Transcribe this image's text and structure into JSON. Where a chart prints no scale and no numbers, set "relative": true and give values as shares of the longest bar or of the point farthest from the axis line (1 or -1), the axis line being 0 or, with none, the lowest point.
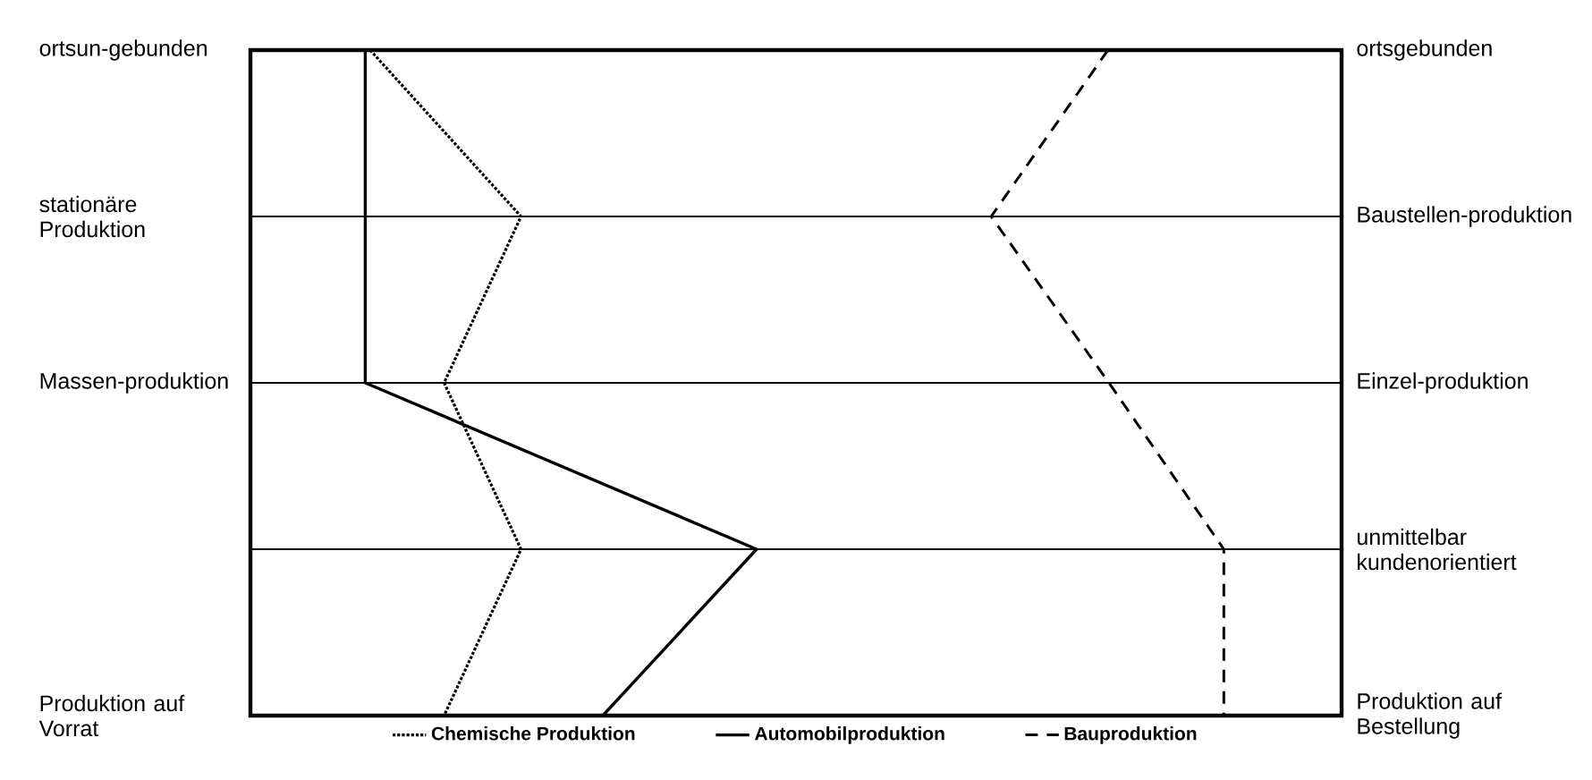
{
  "chart_data": {
    "type": "line",
    "orientation": "horizontal",
    "relative": true,
    "categories": [
      "ortsun-gebunden",
      "stationäre Produktion",
      "Massen-produktion",
      null,
      "Produktion auf Vorrat"
    ],
    "y2_categories": [
      "ortsgebunden",
      "Baustellen-produktion",
      "Einzel-produktion",
      "unmittelbar kundenorientiert",
      "Produktion auf Bestellung"
    ],
    "series": [
      {
        "name": "Chemische Produktion",
        "color": "#000000",
        "line_style": "dotted",
        "values": [
          0.123,
          0.278,
          0.199,
          0.278,
          0.199
        ]
      },
      {
        "name": "Automobilproduktion",
        "color": "#000000",
        "line_style": "solid",
        "values": [
          0.118,
          0.118,
          0.118,
          0.52,
          0.362
        ]
      },
      {
        "name": "Bauproduktion",
        "color": "#000000",
        "line_style": "dashed",
        "values": [
          0.881,
          0.761,
          0.882,
          1,
          1
        ]
      }
    ],
    "grid": "y",
    "legend": "bottom"
  }
}
